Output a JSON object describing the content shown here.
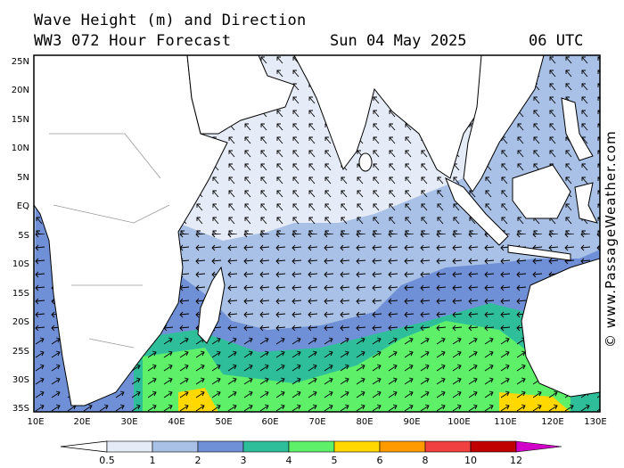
{
  "header": {
    "title": "Wave Height (m) and Direction",
    "model": "WW3 072 Hour Forecast",
    "date": "Sun 04 May 2025",
    "time": "06 UTC"
  },
  "map": {
    "lat_labels": [
      "25N",
      "20N",
      "15N",
      "10N",
      "5N",
      "EQ",
      "5S",
      "10S",
      "15S",
      "20S",
      "25S",
      "30S",
      "35S"
    ],
    "lon_labels": [
      "10E",
      "20E",
      "30E",
      "40E",
      "50E",
      "60E",
      "70E",
      "80E",
      "90E",
      "100E",
      "110E",
      "120E",
      "130E"
    ],
    "colors": {
      "land": "#ffffff",
      "coast": "#000000",
      "border": "#999999"
    }
  },
  "legend": {
    "labels": [
      "0.5",
      "1",
      "2",
      "3",
      "4",
      "5",
      "6",
      "8",
      "10",
      "12"
    ],
    "colors": [
      "#e6ecf7",
      "#a9c1e6",
      "#6f90d6",
      "#2ebf9a",
      "#5ff06a",
      "#ffd800",
      "#ff9a00",
      "#f04040",
      "#c00000",
      "#d000c8"
    ]
  },
  "credit": "© www.PassageWeather.com"
}
